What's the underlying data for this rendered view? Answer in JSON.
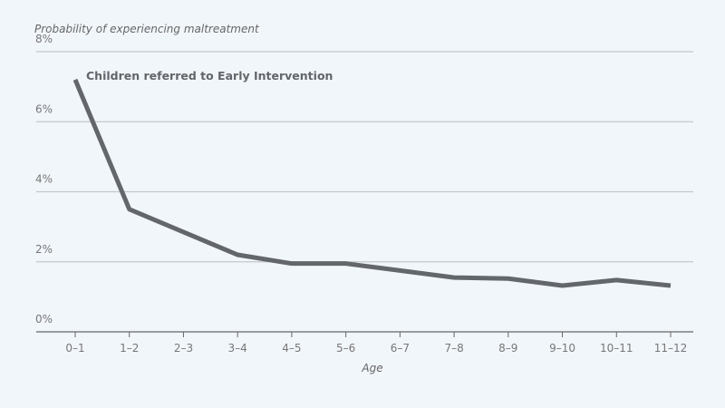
{
  "chart_data": {
    "type": "line",
    "title": "",
    "ylabel": "Probability of experiencing maltreatment",
    "xlabel": "Age",
    "categories": [
      "0–1",
      "1–2",
      "2–3",
      "3–4",
      "4–5",
      "5–6",
      "6–7",
      "7–8",
      "8–9",
      "9–10",
      "10–11",
      "11–12"
    ],
    "series": [
      {
        "name": "Children referred to Early Intervention",
        "values": [
          7.2,
          3.5,
          2.85,
          2.2,
          1.95,
          1.95,
          1.75,
          1.55,
          1.52,
          1.32,
          1.48,
          1.32
        ]
      }
    ],
    "ylim": [
      0,
      8
    ],
    "yticks": [
      0,
      2,
      4,
      6,
      8
    ],
    "ytick_format": "%",
    "grid": true,
    "line_color": "#63676b",
    "grid_color": "#c4c8cc"
  }
}
